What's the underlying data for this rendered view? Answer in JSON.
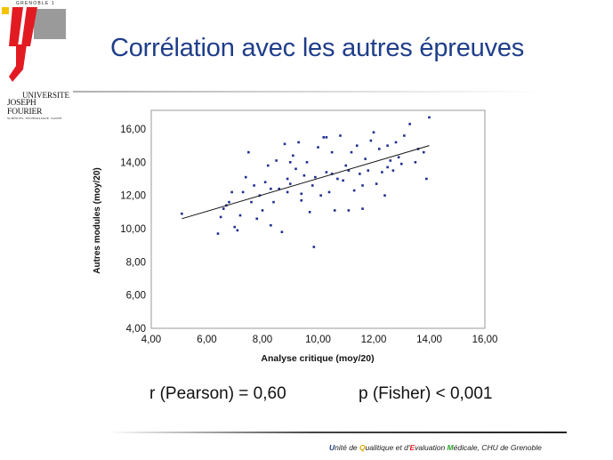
{
  "logo": {
    "top_text": "GRENOBLE 1",
    "univ_line1": "UNIVERSITE",
    "univ_line2": "JOSEPH FOURIER",
    "univ_line3": "SCIENCES. TECHNOLOGIE. SANTÉ",
    "colors": {
      "red": "#e21b23",
      "grey": "#9a9a9a",
      "yellow": "#f2c400"
    }
  },
  "slide": {
    "title": "Corrélation avec les autres épreuves",
    "stat_r": "r (Pearson) = 0,60",
    "stat_p": "p (Fisher) < 0,001"
  },
  "footer": {
    "parts": [
      {
        "text": "U",
        "color": "#1f3e8a"
      },
      {
        "text": "nité de ",
        "color": "#222222"
      },
      {
        "text": "Q",
        "color": "#e0a800"
      },
      {
        "text": "ualitique et d'",
        "color": "#222222"
      },
      {
        "text": "E",
        "color": "#e21b23"
      },
      {
        "text": "valuation ",
        "color": "#222222"
      },
      {
        "text": "M",
        "color": "#2aa02a"
      },
      {
        "text": "édicale, CHU de Grenoble",
        "color": "#222222"
      }
    ]
  },
  "chart_data": {
    "type": "scatter",
    "xlabel": "Analyse critique (moy/20)",
    "ylabel": "Autres modules (moy/20)",
    "xlim": [
      4,
      16
    ],
    "ylim": [
      4,
      17
    ],
    "x_ticks": [
      "4,00",
      "6,00",
      "8,00",
      "10,00",
      "12,00",
      "14,00",
      "16,00"
    ],
    "y_ticks": [
      "4,00",
      "6,00",
      "8,00",
      "10,00",
      "12,00",
      "14,00",
      "16,00"
    ],
    "grid": false,
    "legend": "none",
    "point_color": "#1f2f8f",
    "trendline": {
      "x": [
        5.1,
        14.0
      ],
      "y": [
        10.6,
        15.0
      ]
    },
    "points": [
      [
        5.1,
        10.9
      ],
      [
        6.4,
        9.7
      ],
      [
        6.5,
        10.7
      ],
      [
        6.6,
        11.2
      ],
      [
        6.7,
        11.4
      ],
      [
        6.9,
        12.2
      ],
      [
        7.0,
        10.1
      ],
      [
        7.1,
        9.9
      ],
      [
        7.2,
        10.8
      ],
      [
        7.3,
        12.2
      ],
      [
        7.4,
        13.1
      ],
      [
        7.5,
        14.6
      ],
      [
        7.6,
        11.6
      ],
      [
        7.7,
        12.6
      ],
      [
        7.8,
        10.6
      ],
      [
        8.0,
        11.1
      ],
      [
        8.1,
        12.8
      ],
      [
        8.2,
        13.8
      ],
      [
        8.3,
        10.2
      ],
      [
        8.4,
        11.6
      ],
      [
        8.5,
        14.1
      ],
      [
        8.6,
        12.4
      ],
      [
        8.7,
        9.8
      ],
      [
        8.8,
        15.1
      ],
      [
        8.9,
        13.0
      ],
      [
        9.0,
        12.7
      ],
      [
        9.1,
        14.4
      ],
      [
        9.2,
        13.6
      ],
      [
        9.3,
        15.2
      ],
      [
        9.4,
        12.1
      ],
      [
        9.5,
        13.2
      ],
      [
        9.6,
        14.0
      ],
      [
        9.7,
        11.0
      ],
      [
        9.8,
        12.6
      ],
      [
        9.85,
        8.9
      ],
      [
        9.9,
        13.1
      ],
      [
        10.0,
        14.9
      ],
      [
        10.1,
        12.0
      ],
      [
        10.2,
        15.5
      ],
      [
        10.3,
        13.4
      ],
      [
        10.4,
        12.2
      ],
      [
        10.5,
        14.6
      ],
      [
        10.6,
        11.1
      ],
      [
        10.7,
        13.0
      ],
      [
        10.8,
        15.6
      ],
      [
        10.9,
        12.9
      ],
      [
        11.0,
        13.8
      ],
      [
        11.1,
        11.1
      ],
      [
        11.2,
        14.6
      ],
      [
        11.3,
        12.3
      ],
      [
        11.4,
        15.0
      ],
      [
        11.5,
        13.3
      ],
      [
        11.6,
        11.2
      ],
      [
        11.7,
        14.2
      ],
      [
        11.8,
        13.5
      ],
      [
        11.9,
        15.3
      ],
      [
        12.0,
        15.8
      ],
      [
        12.1,
        12.7
      ],
      [
        12.2,
        14.8
      ],
      [
        12.3,
        13.4
      ],
      [
        12.4,
        12.0
      ],
      [
        12.5,
        15.0
      ],
      [
        12.6,
        14.1
      ],
      [
        12.7,
        13.5
      ],
      [
        12.8,
        15.2
      ],
      [
        12.9,
        14.3
      ],
      [
        13.0,
        13.9
      ],
      [
        13.1,
        15.6
      ],
      [
        13.3,
        16.3
      ],
      [
        13.5,
        14.0
      ],
      [
        13.6,
        14.8
      ],
      [
        13.8,
        14.6
      ],
      [
        13.9,
        13.0
      ],
      [
        14.0,
        16.7
      ],
      [
        6.8,
        11.6
      ],
      [
        7.9,
        12.0
      ],
      [
        8.9,
        12.2
      ],
      [
        9.4,
        11.7
      ],
      [
        10.5,
        13.3
      ],
      [
        11.6,
        12.6
      ],
      [
        12.5,
        13.7
      ],
      [
        9.0,
        14.0
      ],
      [
        10.3,
        15.5
      ],
      [
        11.1,
        13.5
      ],
      [
        8.3,
        12.4
      ]
    ]
  }
}
